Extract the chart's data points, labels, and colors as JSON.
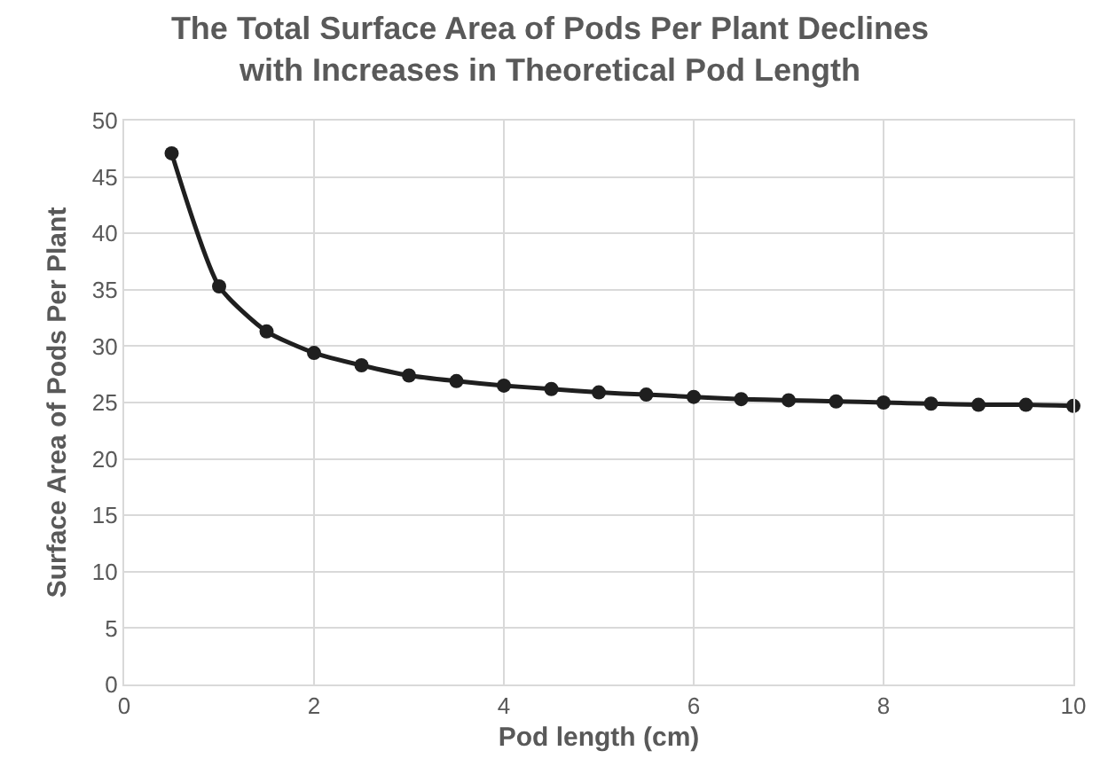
{
  "chart_data": {
    "type": "line",
    "title": "The Total Surface Area of Pods Per Plant Declines\nwith Increases in Theoretical Pod Length",
    "xlabel": "Pod length (cm)",
    "ylabel": "Surface Area of Pods Per Plant",
    "x": [
      0.5,
      1,
      1.5,
      2,
      2.5,
      3,
      3.5,
      4,
      4.5,
      5,
      5.5,
      6,
      6.5,
      7,
      7.5,
      8,
      8.5,
      9,
      9.5,
      10
    ],
    "series": [
      {
        "color": "#1f1f1f",
        "values": [
          47.1,
          35.3,
          31.3,
          29.4,
          28.3,
          27.4,
          26.9,
          26.5,
          26.2,
          25.9,
          25.7,
          25.5,
          25.3,
          25.2,
          25.1,
          25.0,
          24.9,
          24.8,
          24.8,
          24.7
        ]
      }
    ],
    "xlim": [
      0,
      10
    ],
    "xticks": [
      0,
      2,
      4,
      6,
      8,
      10
    ],
    "ylim": [
      0,
      50
    ],
    "yticks": [
      0,
      5,
      10,
      15,
      20,
      25,
      30,
      35,
      40,
      45,
      50
    ],
    "grid": true,
    "marker": "circle",
    "line_style": "solid"
  }
}
